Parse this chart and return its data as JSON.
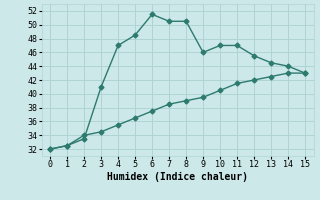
{
  "xlabel": "Humidex (Indice chaleur)",
  "line1_x": [
    0,
    1,
    2,
    3,
    4,
    5,
    6,
    7,
    8,
    9,
    10,
    11,
    12,
    13,
    14,
    15
  ],
  "line1_y": [
    32,
    32.5,
    33.5,
    41,
    47,
    48.5,
    51.5,
    50.5,
    50.5,
    46,
    47,
    47,
    45.5,
    44.5,
    44,
    43
  ],
  "line2_x": [
    0,
    1,
    2,
    3,
    4,
    5,
    6,
    7,
    8,
    9,
    10,
    11,
    12,
    13,
    14,
    15
  ],
  "line2_y": [
    32,
    32.5,
    34,
    34.5,
    35.5,
    36.5,
    37.5,
    38.5,
    39,
    39.5,
    40.5,
    41.5,
    42,
    42.5,
    43,
    43
  ],
  "line_color": "#2d7a6e",
  "bg_color": "#cce8e8",
  "grid_color": "#b0d4d4",
  "xlim": [
    -0.5,
    15.5
  ],
  "ylim": [
    31,
    53
  ],
  "ytick_min": 32,
  "ytick_max": 52,
  "ytick_step": 2,
  "xticks": [
    0,
    1,
    2,
    3,
    4,
    5,
    6,
    7,
    8,
    9,
    10,
    11,
    12,
    13,
    14,
    15
  ],
  "marker": "D",
  "marker_size": 2.5,
  "line_width": 1.0,
  "xlabel_fontsize": 7,
  "tick_fontsize": 6
}
